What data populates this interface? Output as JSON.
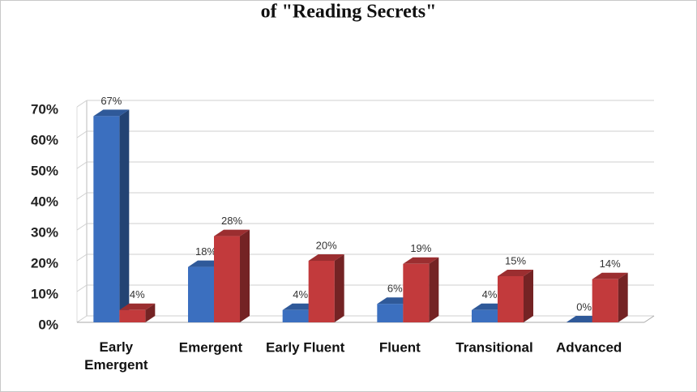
{
  "chart_data": {
    "type": "bar3d",
    "title": "of \"Reading Secrets\"",
    "categories": [
      "Early Emergent",
      "Emergent",
      "Early Fluent",
      "Fluent",
      "Transitional",
      "Advanced"
    ],
    "series": [
      {
        "color": "#3b6fbf",
        "values": [
          67,
          18,
          4,
          6,
          4,
          0
        ],
        "value_labels": [
          "67%",
          "18%",
          "4%",
          "6%",
          "4%",
          "0%"
        ]
      },
      {
        "color": "#c23a3c",
        "values": [
          4,
          28,
          20,
          19,
          15,
          14
        ],
        "value_labels": [
          "4%",
          "28%",
          "20%",
          "19%",
          "15%",
          "14%"
        ]
      }
    ],
    "ylim": [
      0,
      70
    ],
    "yticks": [
      {
        "value": 0,
        "label": "0%"
      },
      {
        "value": 10,
        "label": "10%"
      },
      {
        "value": 20,
        "label": "20%"
      },
      {
        "value": 30,
        "label": "30%"
      },
      {
        "value": 40,
        "label": "40%"
      },
      {
        "value": 50,
        "label": "50%"
      },
      {
        "value": 60,
        "label": "60%"
      },
      {
        "value": 70,
        "label": "70%"
      }
    ],
    "grid": true
  }
}
